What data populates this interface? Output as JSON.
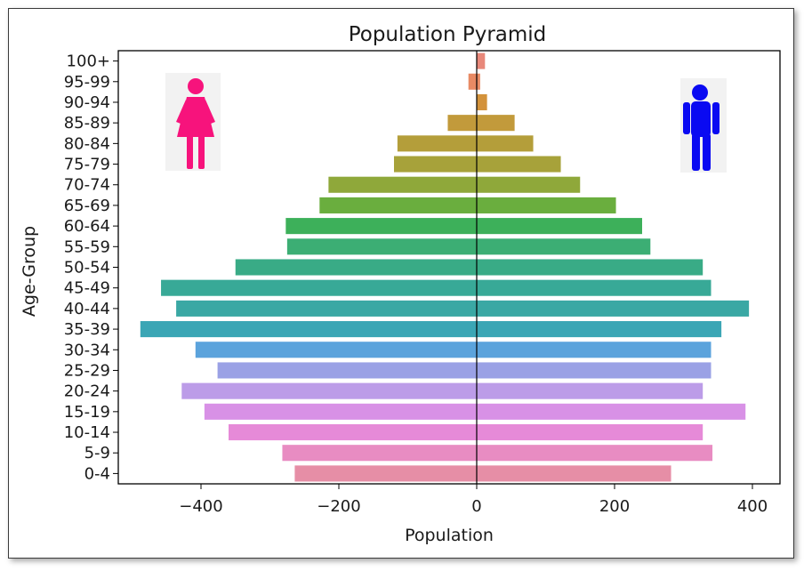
{
  "chart_data": {
    "type": "bar",
    "orientation": "horizontal",
    "title": "Population Pyramid",
    "xlabel": "Population",
    "ylabel": "Age-Group",
    "xlim": [
      -520,
      440
    ],
    "x_ticks": [
      -400,
      -200,
      0,
      200,
      400
    ],
    "x_tick_labels": [
      "−400",
      "−200",
      "0",
      "200",
      "400"
    ],
    "categories": [
      "100+",
      "95-99",
      "90-94",
      "85-89",
      "80-84",
      "75-79",
      "70-74",
      "65-69",
      "60-64",
      "55-59",
      "50-54",
      "45-49",
      "40-44",
      "35-39",
      "30-34",
      "25-29",
      "20-24",
      "15-19",
      "10-14",
      "5-9",
      "0-4"
    ],
    "series": [
      {
        "values": [
          0,
          -12,
          0,
          -42,
          -115,
          -120,
          -215,
          -228,
          -277,
          -275,
          -350,
          -458,
          -436,
          -488,
          -408,
          -376,
          -428,
          -395,
          -360,
          -282,
          -264
        ]
      },
      {
        "values": [
          12,
          5,
          15,
          55,
          82,
          122,
          150,
          202,
          240,
          252,
          328,
          340,
          395,
          355,
          340,
          340,
          328,
          390,
          328,
          342,
          282
        ]
      }
    ],
    "colors": [
      "#e8887a",
      "#e88a64",
      "#d3923b",
      "#c29a3b",
      "#b49e3a",
      "#a7a23a",
      "#8fa83a",
      "#6aae3e",
      "#3db05a",
      "#3cae74",
      "#39ab86",
      "#38a997",
      "#3aa8a4",
      "#3ba6b5",
      "#5ba3dc",
      "#9aa1e5",
      "#bc9ce8",
      "#d891e6",
      "#e68ad8",
      "#e88cc2",
      "#e68ea6"
    ],
    "grid": false
  },
  "icons": {
    "female": {
      "name": "female-icon",
      "color": "#f7137c"
    },
    "male": {
      "name": "male-icon",
      "color": "#0a0af2"
    }
  }
}
